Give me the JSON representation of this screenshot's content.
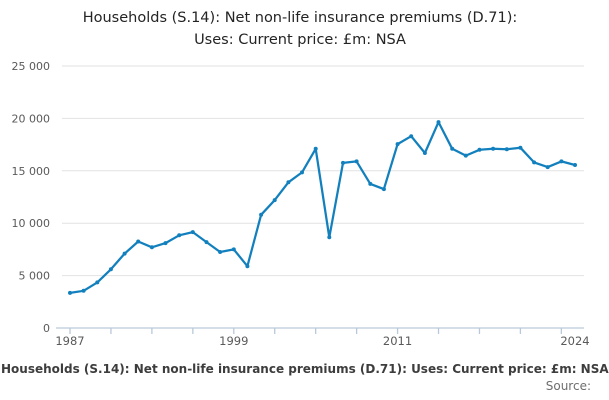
{
  "title": {
    "lines": [
      "Households (S.14): Net non-life insurance premiums (D.71):",
      "Uses: Current price: £m: NSA"
    ]
  },
  "footer": {
    "caption": "Households (S.14): Net non-life insurance premiums (D.71): Uses: Current price: £m: NSA",
    "source_label": "Source:"
  },
  "colors": {
    "line": "#1380be",
    "grid": "#e2e2e2",
    "axis": "#b9c9da",
    "tick_label": "#5a5a5a",
    "title_text": "#242424",
    "caption_text": "#3d3d3d",
    "source_text": "#6e6e6e"
  },
  "chart_data": {
    "type": "line",
    "title": "Households (S.14): Net non-life insurance premiums (D.71): Uses: Current price: £m: NSA",
    "xlabel": "",
    "ylabel": "",
    "xlim": [
      1987,
      2024
    ],
    "ylim": [
      0,
      25000
    ],
    "grid": true,
    "legend": false,
    "x": [
      1987,
      1988,
      1989,
      1990,
      1991,
      1992,
      1993,
      1994,
      1995,
      1996,
      1997,
      1998,
      1999,
      2000,
      2001,
      2002,
      2003,
      2004,
      2005,
      2006,
      2007,
      2008,
      2009,
      2010,
      2011,
      2012,
      2013,
      2014,
      2015,
      2016,
      2017,
      2018,
      2019,
      2020,
      2021,
      2022,
      2023,
      2024
    ],
    "values": [
      3350,
      3550,
      4350,
      5600,
      7100,
      8250,
      7700,
      8100,
      8850,
      9150,
      8200,
      7250,
      7500,
      5900,
      10800,
      12200,
      13900,
      14850,
      17100,
      8650,
      15750,
      15900,
      13750,
      13250,
      17550,
      18300,
      16700,
      19650,
      17100,
      16450,
      17000,
      17100,
      17050,
      17200,
      15800,
      15350,
      15900,
      15550
    ],
    "y_ticks": [
      0,
      5000,
      10000,
      15000,
      20000,
      25000
    ],
    "y_tick_labels": [
      "0",
      "5 000",
      "10 000",
      "15 000",
      "20 000",
      "25 000"
    ],
    "x_minor_ticks": [
      1987,
      1990,
      1993,
      1996,
      1999,
      2002,
      2005,
      2008,
      2011,
      2014,
      2017,
      2020,
      2023
    ],
    "x_tick_labels": [
      {
        "year": 1987,
        "label": "1987"
      },
      {
        "year": 1999,
        "label": "1999"
      },
      {
        "year": 2011,
        "label": "2011"
      },
      {
        "year": 2024,
        "label": "2024"
      }
    ]
  }
}
